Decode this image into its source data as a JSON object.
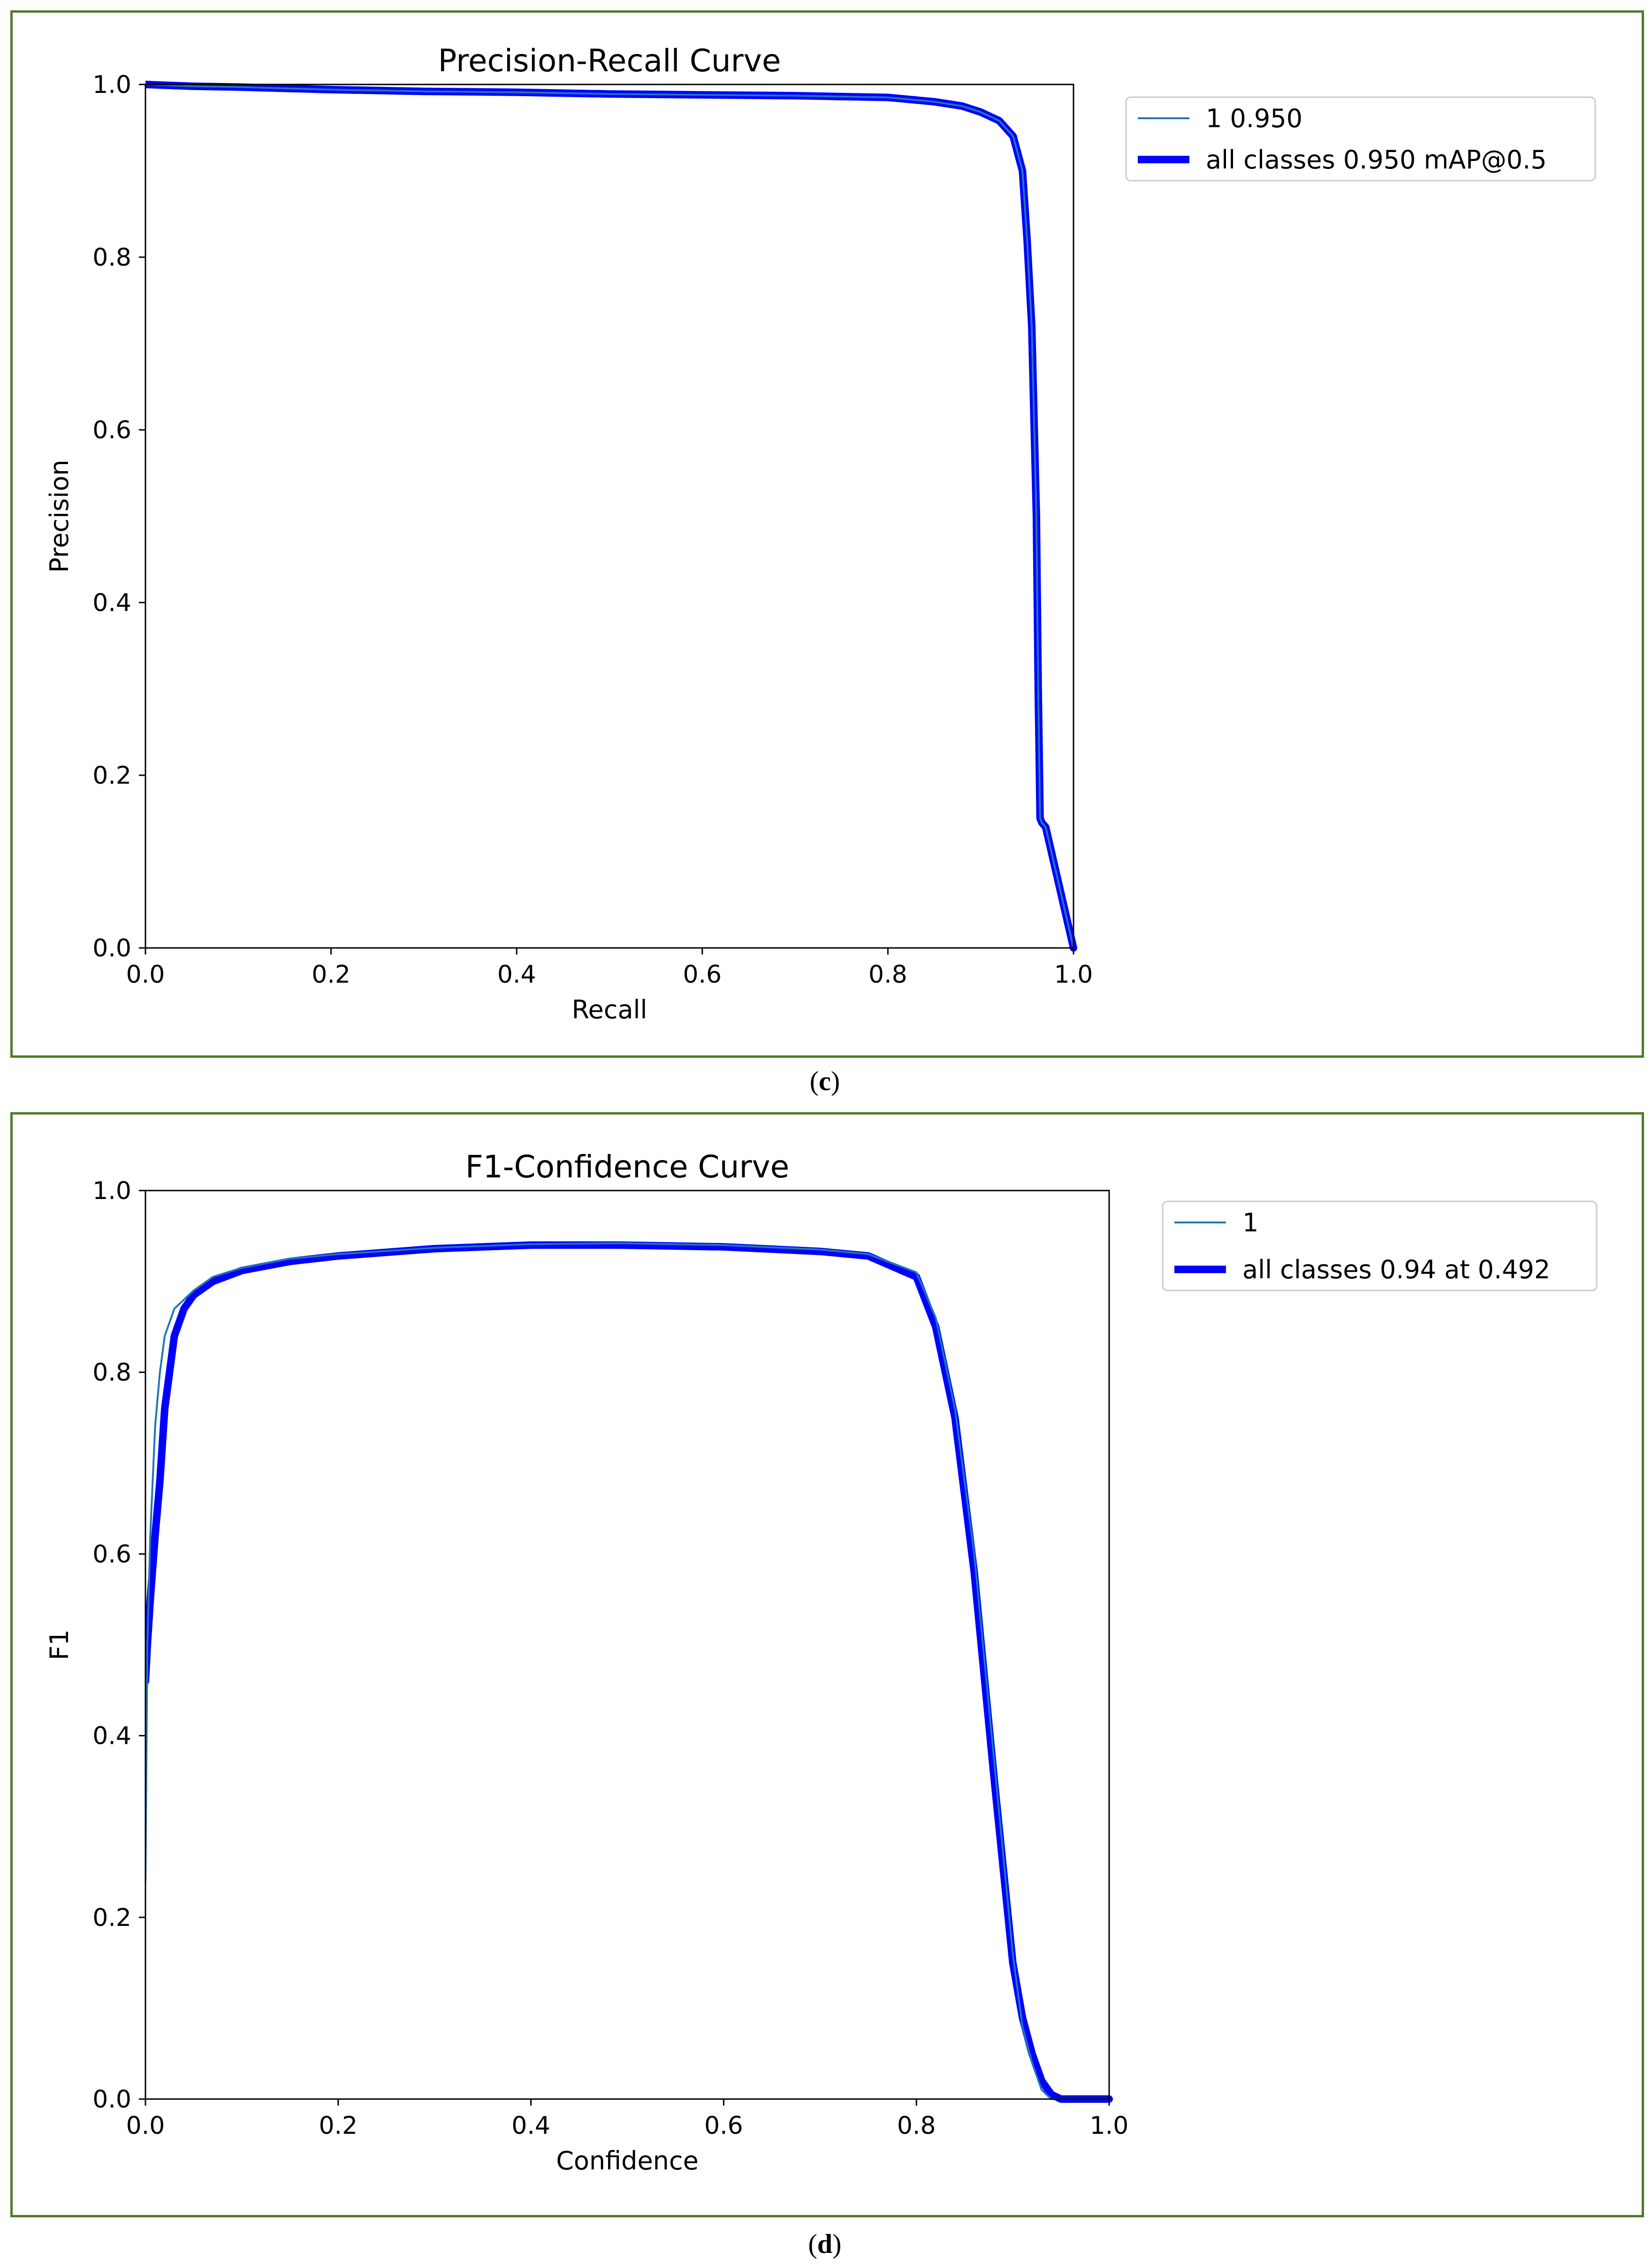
{
  "panels": [
    {
      "caption_letter": "c",
      "chart_data": {
        "type": "line",
        "title": "Precision-Recall Curve",
        "xlabel": "Recall",
        "ylabel": "Precision",
        "xlim": [
          0,
          1
        ],
        "ylim": [
          0,
          1
        ],
        "xticks": [
          "0.0",
          "0.2",
          "0.4",
          "0.6",
          "0.8",
          "1.0"
        ],
        "yticks": [
          "0.0",
          "0.2",
          "0.4",
          "0.6",
          "0.8",
          "1.0"
        ],
        "grid": false,
        "legend_position": "outside-top-right",
        "series": [
          {
            "name": "1 0.950",
            "color": "#1f77b4",
            "style": "thin",
            "x": [
              0.0,
              0.05,
              0.1,
              0.2,
              0.3,
              0.4,
              0.5,
              0.6,
              0.7,
              0.8,
              0.85,
              0.88,
              0.9,
              0.92,
              0.935,
              0.945,
              0.95,
              0.955,
              0.96,
              0.962,
              0.964,
              0.966,
              0.97,
              1.0
            ],
            "y": [
              1.0,
              0.998,
              0.997,
              0.994,
              0.992,
              0.991,
              0.989,
              0.988,
              0.987,
              0.985,
              0.98,
              0.975,
              0.968,
              0.958,
              0.94,
              0.9,
              0.82,
              0.72,
              0.5,
              0.3,
              0.15,
              0.145,
              0.14,
              0.0
            ]
          },
          {
            "name": "all classes 0.950 mAP@0.5",
            "color": "#0000ff",
            "style": "thick",
            "x": [
              0.0,
              0.05,
              0.1,
              0.2,
              0.3,
              0.4,
              0.5,
              0.6,
              0.7,
              0.8,
              0.85,
              0.88,
              0.9,
              0.92,
              0.935,
              0.945,
              0.95,
              0.955,
              0.96,
              0.962,
              0.964,
              0.966,
              0.97,
              1.0
            ],
            "y": [
              1.0,
              0.998,
              0.997,
              0.994,
              0.992,
              0.991,
              0.989,
              0.988,
              0.987,
              0.985,
              0.98,
              0.975,
              0.968,
              0.958,
              0.94,
              0.9,
              0.82,
              0.72,
              0.5,
              0.3,
              0.15,
              0.145,
              0.14,
              0.0
            ]
          }
        ]
      }
    },
    {
      "caption_letter": "d",
      "chart_data": {
        "type": "line",
        "title": "F1-Confidence Curve",
        "xlabel": "Confidence",
        "ylabel": "F1",
        "xlim": [
          0,
          1
        ],
        "ylim": [
          0,
          1
        ],
        "xticks": [
          "0.0",
          "0.2",
          "0.4",
          "0.6",
          "0.8",
          "1.0"
        ],
        "yticks": [
          "0.0",
          "0.2",
          "0.4",
          "0.6",
          "0.8",
          "1.0"
        ],
        "grid": false,
        "legend_position": "outside-top-right",
        "series": [
          {
            "name": "1",
            "color": "#1f77b4",
            "style": "thin",
            "x": [
              0.0,
              0.002,
              0.005,
              0.01,
              0.015,
              0.02,
              0.03,
              0.04,
              0.05,
              0.07,
              0.1,
              0.15,
              0.2,
              0.3,
              0.4,
              0.492,
              0.6,
              0.7,
              0.75,
              0.8,
              0.82,
              0.84,
              0.86,
              0.88,
              0.9,
              0.91,
              0.92,
              0.93,
              0.94,
              0.95,
              1.0
            ],
            "y": [
              0.24,
              0.5,
              0.62,
              0.74,
              0.8,
              0.84,
              0.87,
              0.88,
              0.89,
              0.905,
              0.915,
              0.925,
              0.93,
              0.937,
              0.941,
              0.942,
              0.94,
              0.935,
              0.93,
              0.91,
              0.86,
              0.76,
              0.6,
              0.38,
              0.16,
              0.08,
              0.04,
              0.01,
              0.0,
              0.0,
              0.0
            ]
          },
          {
            "name": "all classes 0.94 at 0.492",
            "color": "#0000ff",
            "style": "thick",
            "x": [
              0.0,
              0.002,
              0.005,
              0.01,
              0.015,
              0.02,
              0.03,
              0.04,
              0.05,
              0.07,
              0.1,
              0.15,
              0.2,
              0.3,
              0.4,
              0.492,
              0.6,
              0.7,
              0.75,
              0.8,
              0.82,
              0.84,
              0.86,
              0.88,
              0.9,
              0.91,
              0.92,
              0.93,
              0.94,
              0.95,
              0.96,
              1.0
            ],
            "y": [
              0.46,
              0.5,
              0.55,
              0.62,
              0.68,
              0.76,
              0.84,
              0.87,
              0.885,
              0.9,
              0.912,
              0.922,
              0.928,
              0.936,
              0.94,
              0.94,
              0.938,
              0.933,
              0.928,
              0.905,
              0.85,
              0.75,
              0.58,
              0.36,
              0.15,
              0.09,
              0.05,
              0.02,
              0.005,
              0.0,
              0.0,
              0.0
            ]
          }
        ]
      }
    }
  ]
}
